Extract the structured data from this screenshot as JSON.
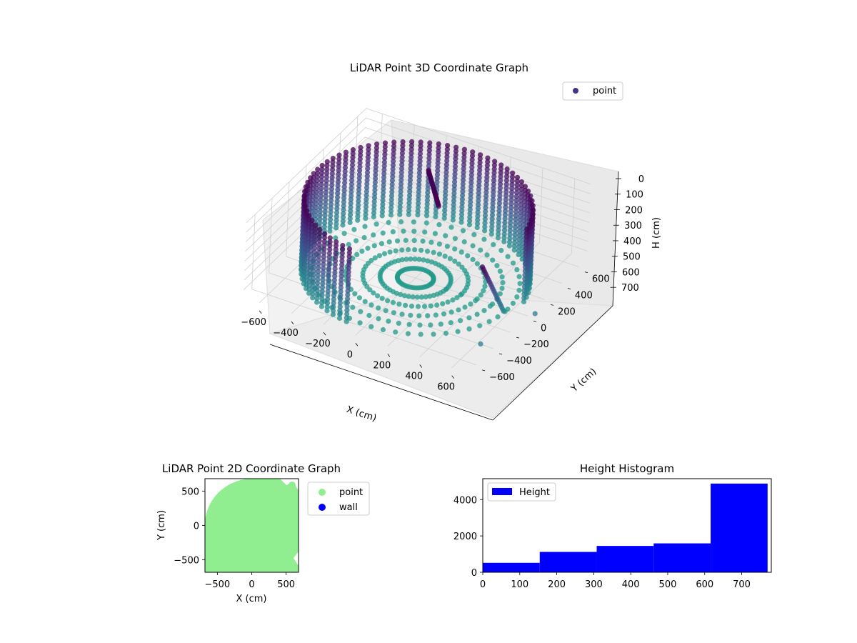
{
  "chart_data": [
    {
      "type": "scatter",
      "projection": "3d",
      "title": "LiDAR Point 3D Coordinate Graph",
      "xlabel": "X (cm)",
      "ylabel": "Y (cm)",
      "zlabel": "H (cm)",
      "xlim": [
        -700,
        700
      ],
      "ylim": [
        -700,
        700
      ],
      "zlim": [
        780,
        0
      ],
      "z_axis_inverted": true,
      "x_ticks": [
        -600,
        -400,
        -200,
        0,
        200,
        400,
        600
      ],
      "y_ticks": [
        -600,
        -400,
        -200,
        0,
        200,
        400,
        600
      ],
      "z_ticks": [
        0,
        100,
        200,
        300,
        400,
        500,
        600,
        700
      ],
      "colormap": "viridis (by height)",
      "legend": {
        "entries": [
          "point"
        ],
        "placement": "upper right"
      },
      "grid": true,
      "series": [
        {
          "name": "point",
          "shape": "cylindrical wall of points, radius ~630 cm, height 0-780 cm, open toward +X/-Y",
          "wall_radius": 630,
          "floor_height": 780,
          "ring_layers_height": [
            0,
            40,
            80,
            120,
            160,
            200,
            240,
            280,
            320,
            360,
            400,
            440,
            480,
            520,
            560,
            600,
            640,
            680,
            720,
            760
          ],
          "outliers": [
            {
              "x": 820,
              "y": -150,
              "h": 560
            },
            {
              "x": 680,
              "y": -520,
              "h": 640
            }
          ]
        }
      ]
    },
    {
      "type": "scatter",
      "title": "LiDAR Point 2D Coordinate Graph",
      "xlabel": "X (cm)",
      "ylabel": "Y (cm)",
      "xlim": [
        -680,
        680
      ],
      "ylim": [
        -680,
        680
      ],
      "x_ticks": [
        -500,
        0,
        500
      ],
      "y_ticks": [
        -500,
        0,
        500
      ],
      "legend": {
        "entries": [
          "point",
          "wall"
        ],
        "placement": "outside right"
      },
      "series": [
        {
          "name": "point",
          "color": "#90ee90",
          "shape": "filled disc of radius ~650 cm"
        },
        {
          "name": "wall",
          "color": "#0000ff"
        }
      ]
    },
    {
      "type": "bar",
      "title": "Height Histogram",
      "legend": {
        "entries": [
          "Height"
        ],
        "placement": "upper left"
      },
      "color": "#0000ff",
      "xlim": [
        0,
        780
      ],
      "ylim": [
        0,
        5150
      ],
      "x_ticks": [
        0,
        100,
        200,
        300,
        400,
        500,
        600,
        700
      ],
      "y_ticks": [
        0,
        2000,
        4000
      ],
      "bins": [
        {
          "start": 0,
          "end": 154,
          "count": 520
        },
        {
          "start": 154,
          "end": 308,
          "count": 1120
        },
        {
          "start": 308,
          "end": 462,
          "count": 1450
        },
        {
          "start": 462,
          "end": 616,
          "count": 1590
        },
        {
          "start": 616,
          "end": 770,
          "count": 4880
        }
      ]
    }
  ]
}
